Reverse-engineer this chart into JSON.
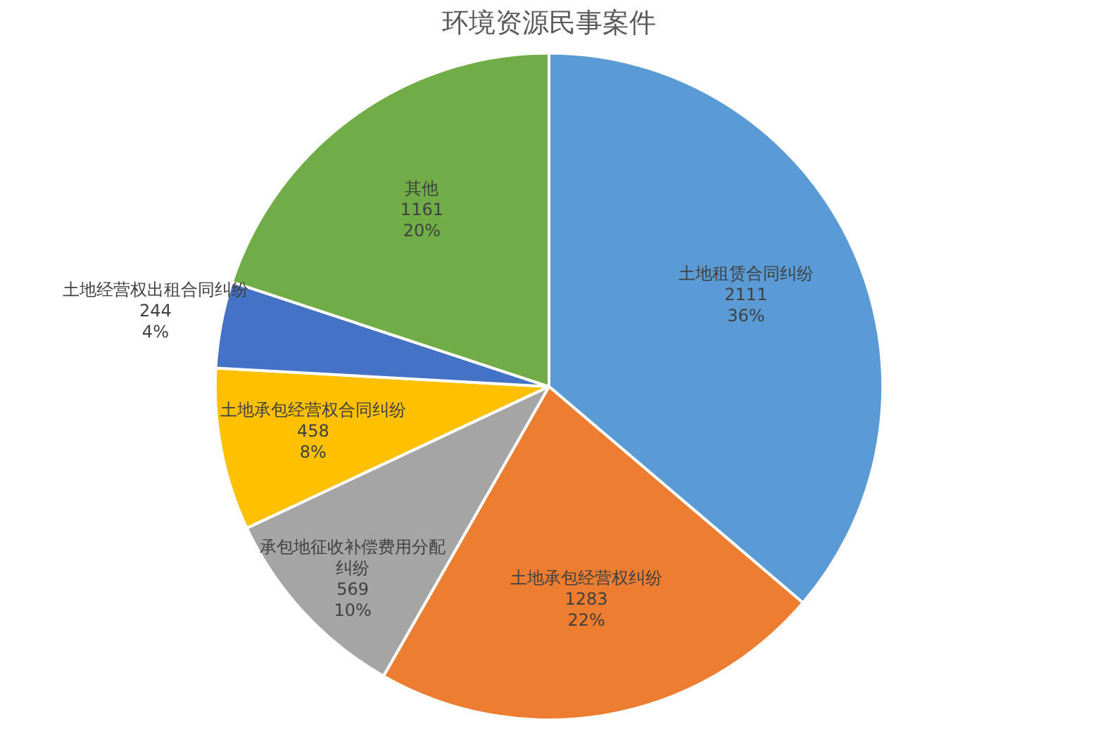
{
  "chart_data": {
    "type": "pie",
    "title": "环境资源民事案件",
    "categories": [
      "土地租赁合同纠纷",
      "土地承包经营权纠纷",
      "承包地征收补偿费用分配纠纷",
      "土地承包经营权合同纠纷",
      "土地经营权出租合同纠纷",
      "其他"
    ],
    "values": [
      2111,
      1283,
      569,
      458,
      244,
      1161
    ],
    "value_labels": [
      "2111\n36%",
      "1283\n22%",
      "569\n10%",
      "458\n8%",
      "244\n4%",
      "1161\n20%"
    ],
    "colors": [
      "#5b9bd5",
      "#ed7d31",
      "#a5a5a5",
      "#ffc000",
      "#4472c4",
      "#70ad47"
    ],
    "legend": false
  }
}
